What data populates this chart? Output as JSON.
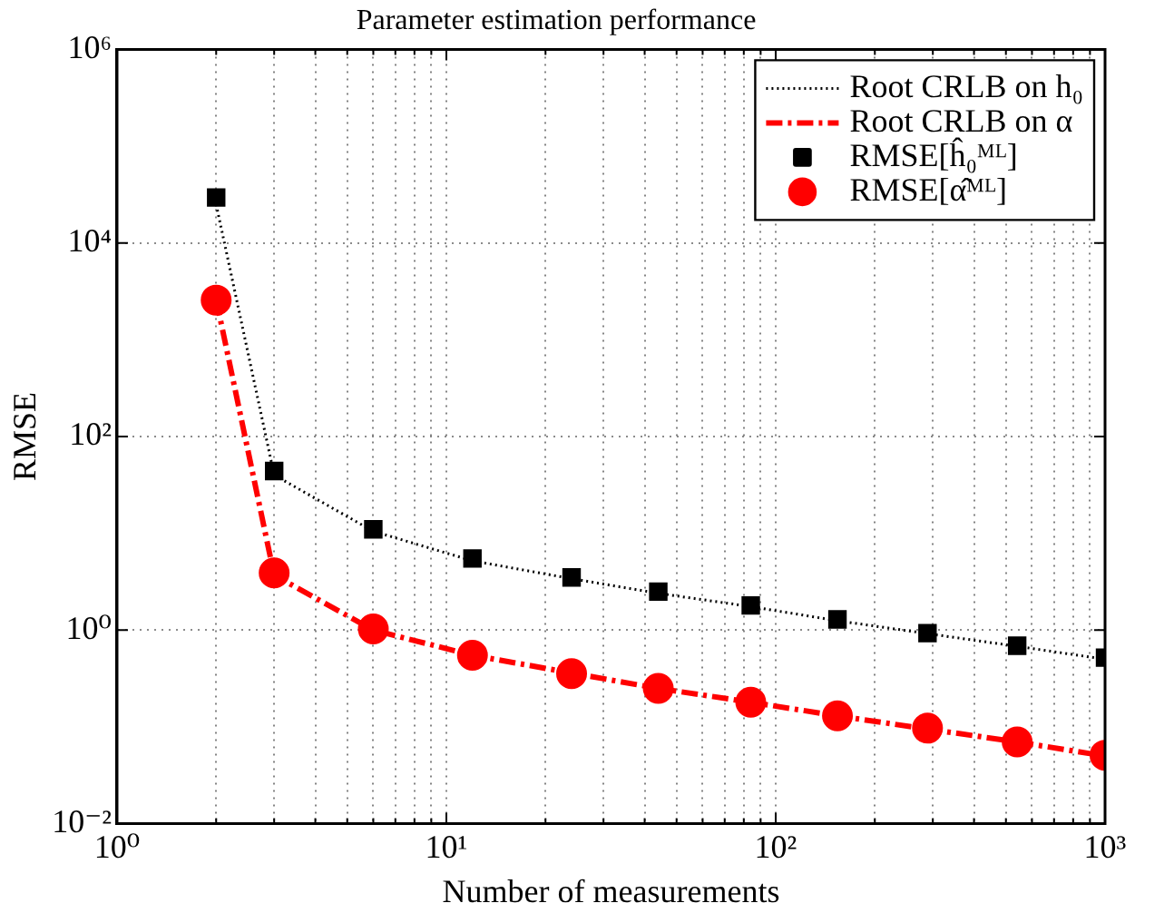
{
  "chart_data": {
    "type": "scatter",
    "title": "Parameter estimation performance",
    "xlabel": "Number of measurements",
    "ylabel": "RMSE",
    "log": "xy",
    "grid": true,
    "legend": "top right",
    "xlim": [
      1,
      1000
    ],
    "ylim": [
      0.01,
      1000000
    ],
    "xticks": [
      {
        "value": 1,
        "label": "10⁰"
      },
      {
        "value": 2,
        "label": null
      },
      {
        "value": 3,
        "label": null
      },
      {
        "value": 4,
        "label": null
      },
      {
        "value": 5,
        "label": null
      },
      {
        "value": 6,
        "label": null
      },
      {
        "value": 7,
        "label": null
      },
      {
        "value": 8,
        "label": null
      },
      {
        "value": 9,
        "label": null
      },
      {
        "value": 10,
        "label": "10¹"
      },
      {
        "value": 20,
        "label": null
      },
      {
        "value": 30,
        "label": null
      },
      {
        "value": 40,
        "label": null
      },
      {
        "value": 50,
        "label": null
      },
      {
        "value": 60,
        "label": null
      },
      {
        "value": 70,
        "label": null
      },
      {
        "value": 80,
        "label": null
      },
      {
        "value": 90,
        "label": null
      },
      {
        "value": 100,
        "label": "10²"
      },
      {
        "value": 200,
        "label": null
      },
      {
        "value": 300,
        "label": null
      },
      {
        "value": 400,
        "label": null
      },
      {
        "value": 500,
        "label": null
      },
      {
        "value": 600,
        "label": null
      },
      {
        "value": 700,
        "label": null
      },
      {
        "value": 800,
        "label": null
      },
      {
        "value": 900,
        "label": null
      },
      {
        "value": 1000,
        "label": "10³"
      }
    ],
    "yticks": [
      {
        "value": 0.01,
        "label": "10⁻²"
      },
      {
        "value": 1,
        "label": "10⁰"
      },
      {
        "value": 100,
        "label": "10²"
      },
      {
        "value": 10000,
        "label": "10⁴"
      },
      {
        "value": 1000000,
        "label": "10⁶"
      }
    ],
    "x": [
      2,
      3,
      6,
      12,
      24,
      44,
      84,
      154,
      289,
      541,
      1000
    ],
    "series": [
      {
        "name": "Root CRLB on h₀",
        "type": "line",
        "marker": "none",
        "line_style": "dotted",
        "color": "#000000",
        "values": [
          25000,
          40,
          10.5,
          5.2,
          3.4,
          2.4,
          1.75,
          1.25,
          0.92,
          0.68,
          0.5
        ]
      },
      {
        "name": "Root CRLB on α",
        "type": "line",
        "marker": "none",
        "line_style": "dashed",
        "color": "#ff0000",
        "values": [
          2600,
          3.7,
          1.0,
          0.55,
          0.36,
          0.25,
          0.18,
          0.13,
          0.095,
          0.07,
          0.05
        ]
      },
      {
        "name": "RMSE[ĥ₀ᴹᴸ]",
        "marker": "square",
        "color": "#000000",
        "values": [
          29500,
          44,
          11,
          5.5,
          3.5,
          2.5,
          1.8,
          1.29,
          0.93,
          0.69,
          0.52
        ]
      },
      {
        "name": "RMSE[α̂ᴹᴸ]",
        "marker": "circle",
        "color": "#ff0000",
        "values": [
          2570,
          3.9,
          1.03,
          0.55,
          0.355,
          0.25,
          0.18,
          0.13,
          0.097,
          0.07,
          0.051
        ]
      }
    ]
  }
}
